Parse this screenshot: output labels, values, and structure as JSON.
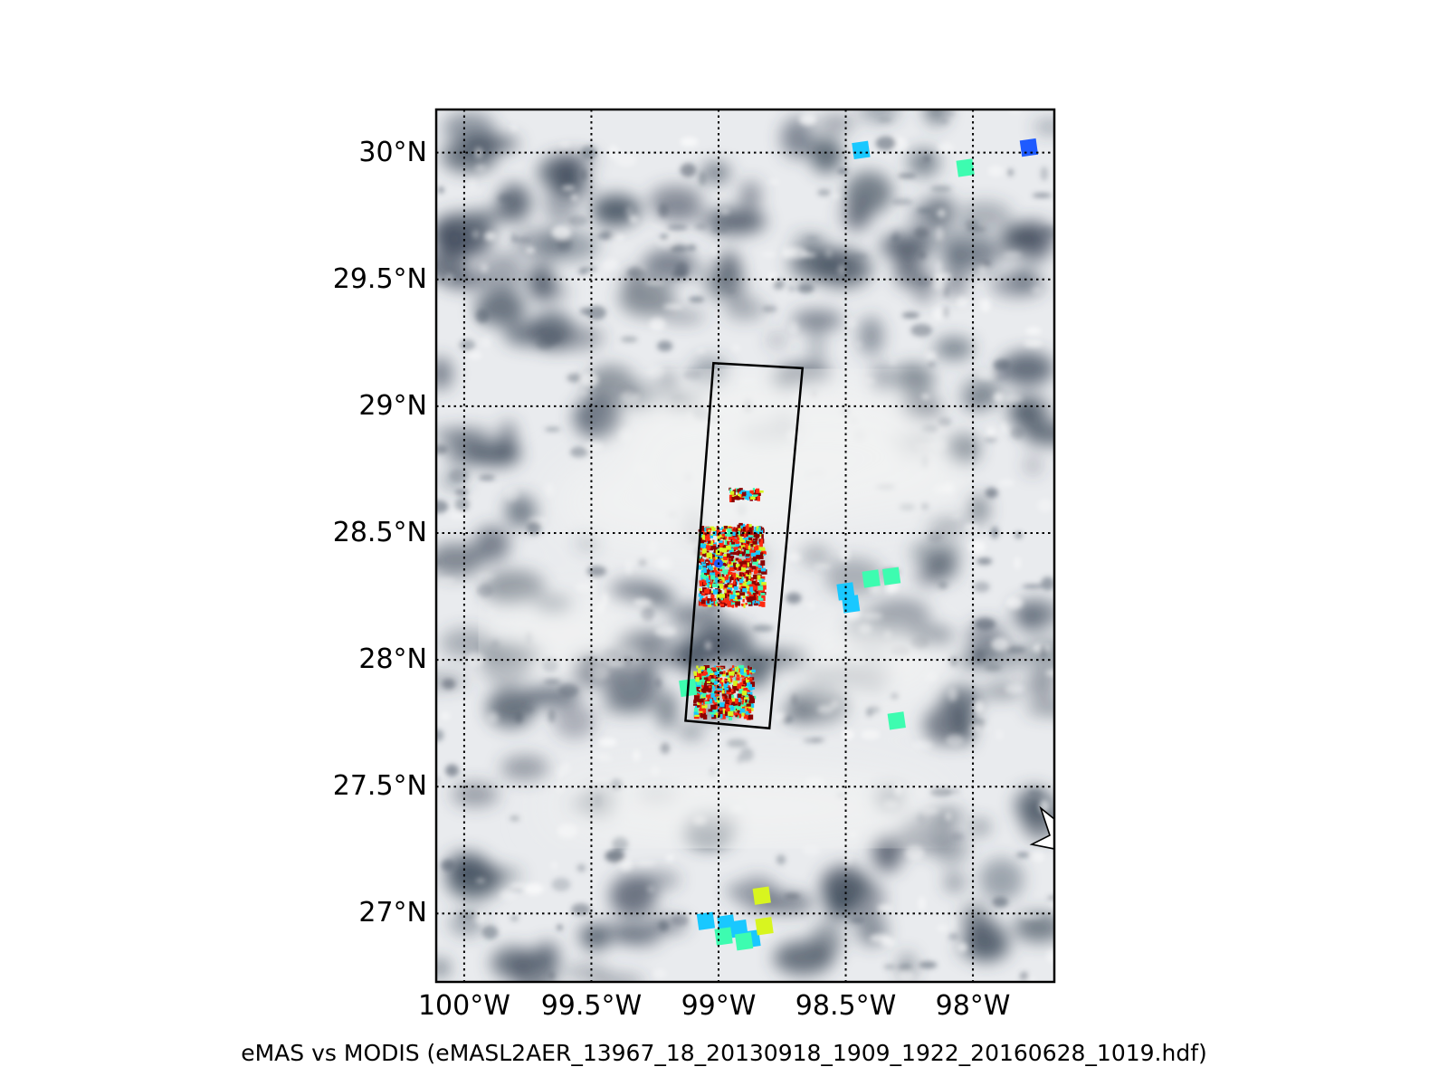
{
  "figure": {
    "caption": "eMAS vs MODIS (eMASL2AER_13967_18_20130918_1909_1922_20160628_1019.hdf)"
  },
  "map": {
    "lon_range": [
      -100.11,
      -97.68
    ],
    "lat_range": [
      26.73,
      30.17
    ],
    "background": "MODIS true-color imagery with broken cloud cover",
    "lat_ticks": [
      {
        "value": 30.0,
        "label": "30°N"
      },
      {
        "value": 29.5,
        "label": "29.5°N"
      },
      {
        "value": 29.0,
        "label": "29°N"
      },
      {
        "value": 28.5,
        "label": "28.5°N"
      },
      {
        "value": 28.0,
        "label": "28°N"
      },
      {
        "value": 27.5,
        "label": "27.5°N"
      },
      {
        "value": 27.0,
        "label": "27°N"
      }
    ],
    "lon_ticks": [
      {
        "value": -100.0,
        "label": "100°W"
      },
      {
        "value": -99.5,
        "label": "99.5°W"
      },
      {
        "value": -99.0,
        "label": "99°W"
      },
      {
        "value": -98.5,
        "label": "98.5°W"
      },
      {
        "value": -98.0,
        "label": "98°W"
      }
    ],
    "gridlines": "dotted",
    "swath_box": {
      "corners": [
        {
          "lon": -99.02,
          "lat": 29.17
        },
        {
          "lon": -98.67,
          "lat": 29.15
        },
        {
          "lon": -98.8,
          "lat": 27.73
        },
        {
          "lon": -99.13,
          "lat": 27.76
        }
      ]
    },
    "colors": {
      "frame": "#000000",
      "grid": "#000000",
      "cloud": "#f1f2f2",
      "ground": "#3e4a5a",
      "aod_low": "#1f5bff",
      "aod_mid_low": "#19c8ff",
      "aod_mid": "#3dfcb0",
      "aod_mid_high": "#d8f51f",
      "aod_high": "#ff2a10",
      "aod_very_high": "#8b0000"
    },
    "modis_pixels": [
      {
        "lon": -98.44,
        "lat": 30.01,
        "color": "aod_mid_low"
      },
      {
        "lon": -97.78,
        "lat": 30.02,
        "color": "aod_low"
      },
      {
        "lon": -98.03,
        "lat": 29.94,
        "color": "aod_mid"
      },
      {
        "lon": -98.5,
        "lat": 28.27,
        "color": "aod_mid_low"
      },
      {
        "lon": -98.48,
        "lat": 28.22,
        "color": "aod_mid_low"
      },
      {
        "lon": -98.4,
        "lat": 28.32,
        "color": "aod_mid"
      },
      {
        "lon": -98.32,
        "lat": 28.33,
        "color": "aod_mid"
      },
      {
        "lon": -98.3,
        "lat": 27.76,
        "color": "aod_mid"
      },
      {
        "lon": -99.12,
        "lat": 27.89,
        "color": "aod_mid"
      },
      {
        "lon": -98.83,
        "lat": 27.07,
        "color": "aod_mid_high"
      },
      {
        "lon": -99.05,
        "lat": 26.97,
        "color": "aod_mid_low"
      },
      {
        "lon": -98.97,
        "lat": 26.96,
        "color": "aod_mid_low"
      },
      {
        "lon": -98.92,
        "lat": 26.94,
        "color": "aod_mid_low"
      },
      {
        "lon": -98.87,
        "lat": 26.9,
        "color": "aod_mid_low"
      },
      {
        "lon": -98.98,
        "lat": 26.91,
        "color": "aod_mid"
      },
      {
        "lon": -98.82,
        "lat": 26.95,
        "color": "aod_mid_high"
      },
      {
        "lon": -98.9,
        "lat": 26.89,
        "color": "aod_mid"
      }
    ]
  }
}
